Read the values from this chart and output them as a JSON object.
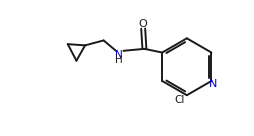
{
  "background_color": "#ffffff",
  "line_color": "#1a1a1a",
  "text_color": "#1a1a1a",
  "n_color": "#0000cc",
  "line_width": 1.4,
  "font_size": 7.5,
  "figsize": [
    2.55,
    1.36
  ],
  "dpi": 100,
  "xlim": [
    0,
    10
  ],
  "ylim": [
    0,
    5.5
  ]
}
